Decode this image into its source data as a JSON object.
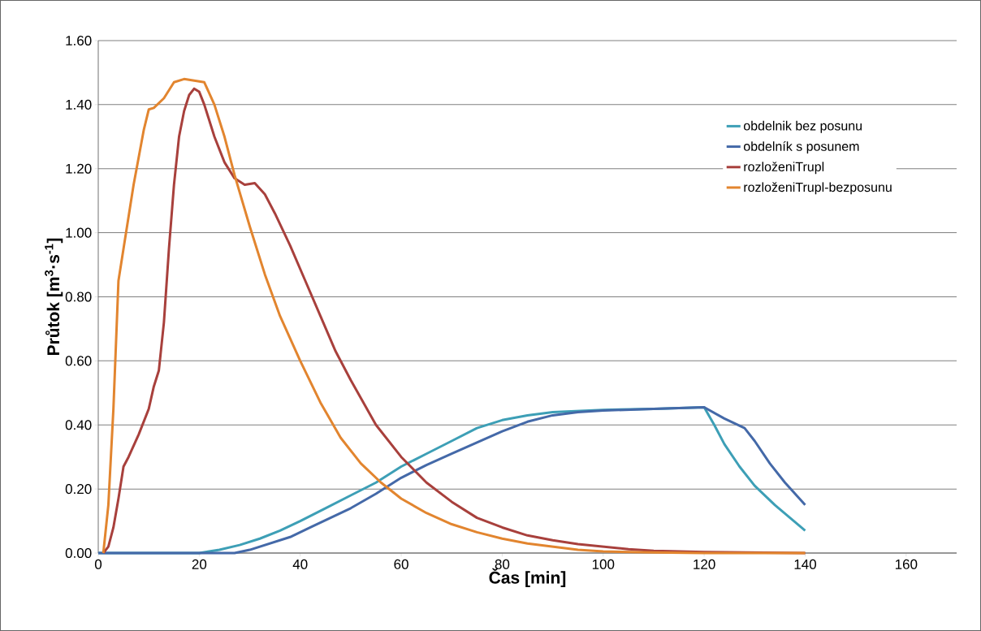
{
  "chart_data": {
    "type": "line",
    "xlabel": "Čas [min]",
    "ylabel": "Průtok [m$^{3}$·s$^{-1}$]",
    "xlim": [
      0,
      170
    ],
    "xticks": [
      0,
      20,
      40,
      60,
      80,
      100,
      120,
      140,
      160
    ],
    "ylim": [
      0,
      1.6
    ],
    "yticks": [
      {
        "value": 0,
        "label": "0.00"
      },
      {
        "value": 0.2,
        "label": "0.20"
      },
      {
        "value": 0.4,
        "label": "0.40"
      },
      {
        "value": 0.6,
        "label": "0.60"
      },
      {
        "value": 0.8,
        "label": "0.80"
      },
      {
        "value": 1.0,
        "label": "1.00"
      },
      {
        "value": 1.2,
        "label": "1.20"
      },
      {
        "value": 1.4,
        "label": "1.40"
      },
      {
        "value": 1.6,
        "label": "1.60"
      }
    ],
    "grid": "y",
    "legend": "top right",
    "marker": "none",
    "line_style": "solid",
    "series": [
      {
        "name": "obdelnik bez posunu",
        "color": "#3d9fb6",
        "x": [
          0,
          20,
          24,
          28,
          32,
          36,
          40,
          45,
          50,
          55,
          60,
          65,
          70,
          75,
          80,
          85,
          90,
          100,
          110,
          120,
          122,
          124,
          127,
          130,
          134,
          137,
          140
        ],
        "values": [
          0,
          0,
          0.01,
          0.025,
          0.045,
          0.07,
          0.1,
          0.14,
          0.18,
          0.22,
          0.27,
          0.31,
          0.35,
          0.39,
          0.415,
          0.43,
          0.44,
          0.447,
          0.45,
          0.455,
          0.4,
          0.34,
          0.27,
          0.21,
          0.15,
          0.11,
          0.07
        ]
      },
      {
        "name": "obdelník s posunem",
        "color": "#4469a8",
        "x": [
          0,
          27,
          30,
          34,
          38,
          42,
          46,
          50,
          55,
          60,
          65,
          70,
          75,
          80,
          85,
          90,
          95,
          100,
          110,
          120,
          124,
          128,
          130,
          133,
          136,
          140
        ],
        "values": [
          0,
          0,
          0.01,
          0.03,
          0.05,
          0.08,
          0.11,
          0.14,
          0.185,
          0.235,
          0.275,
          0.31,
          0.345,
          0.38,
          0.41,
          0.43,
          0.44,
          0.445,
          0.45,
          0.455,
          0.42,
          0.39,
          0.35,
          0.28,
          0.22,
          0.15
        ]
      },
      {
        "name": "rozloženiTrupl",
        "color": "#a8403c",
        "x": [
          1,
          2,
          3,
          4,
          5,
          6,
          8,
          10,
          11,
          12,
          13,
          14,
          15,
          16,
          17,
          18,
          19,
          20,
          21,
          23,
          25,
          27,
          29,
          31,
          33,
          35,
          38,
          41,
          44,
          47,
          50,
          55,
          60,
          65,
          70,
          75,
          80,
          85,
          90,
          95,
          100,
          105,
          110,
          120,
          140
        ],
        "values": [
          0,
          0.02,
          0.08,
          0.17,
          0.27,
          0.3,
          0.37,
          0.45,
          0.52,
          0.57,
          0.72,
          0.95,
          1.15,
          1.3,
          1.38,
          1.43,
          1.45,
          1.44,
          1.4,
          1.3,
          1.22,
          1.17,
          1.15,
          1.155,
          1.12,
          1.06,
          0.96,
          0.85,
          0.74,
          0.63,
          0.54,
          0.4,
          0.3,
          0.22,
          0.16,
          0.11,
          0.08,
          0.055,
          0.04,
          0.028,
          0.02,
          0.012,
          0.007,
          0.003,
          0
        ]
      },
      {
        "name": "rozloženiTrupl-bezposunu",
        "color": "#e2852f",
        "x": [
          1,
          2,
          3,
          4,
          5,
          7,
          9,
          10,
          11,
          13,
          15,
          17,
          19,
          21,
          23,
          25,
          27,
          30,
          33,
          36,
          40,
          44,
          48,
          52,
          56,
          60,
          65,
          70,
          75,
          80,
          85,
          90,
          95,
          100,
          110,
          120,
          140
        ],
        "values": [
          0,
          0.15,
          0.45,
          0.85,
          0.95,
          1.15,
          1.32,
          1.385,
          1.39,
          1.42,
          1.47,
          1.48,
          1.475,
          1.47,
          1.4,
          1.3,
          1.18,
          1.02,
          0.87,
          0.74,
          0.6,
          0.47,
          0.36,
          0.28,
          0.22,
          0.17,
          0.125,
          0.09,
          0.065,
          0.045,
          0.03,
          0.02,
          0.01,
          0.005,
          0.002,
          0,
          0
        ]
      }
    ]
  }
}
